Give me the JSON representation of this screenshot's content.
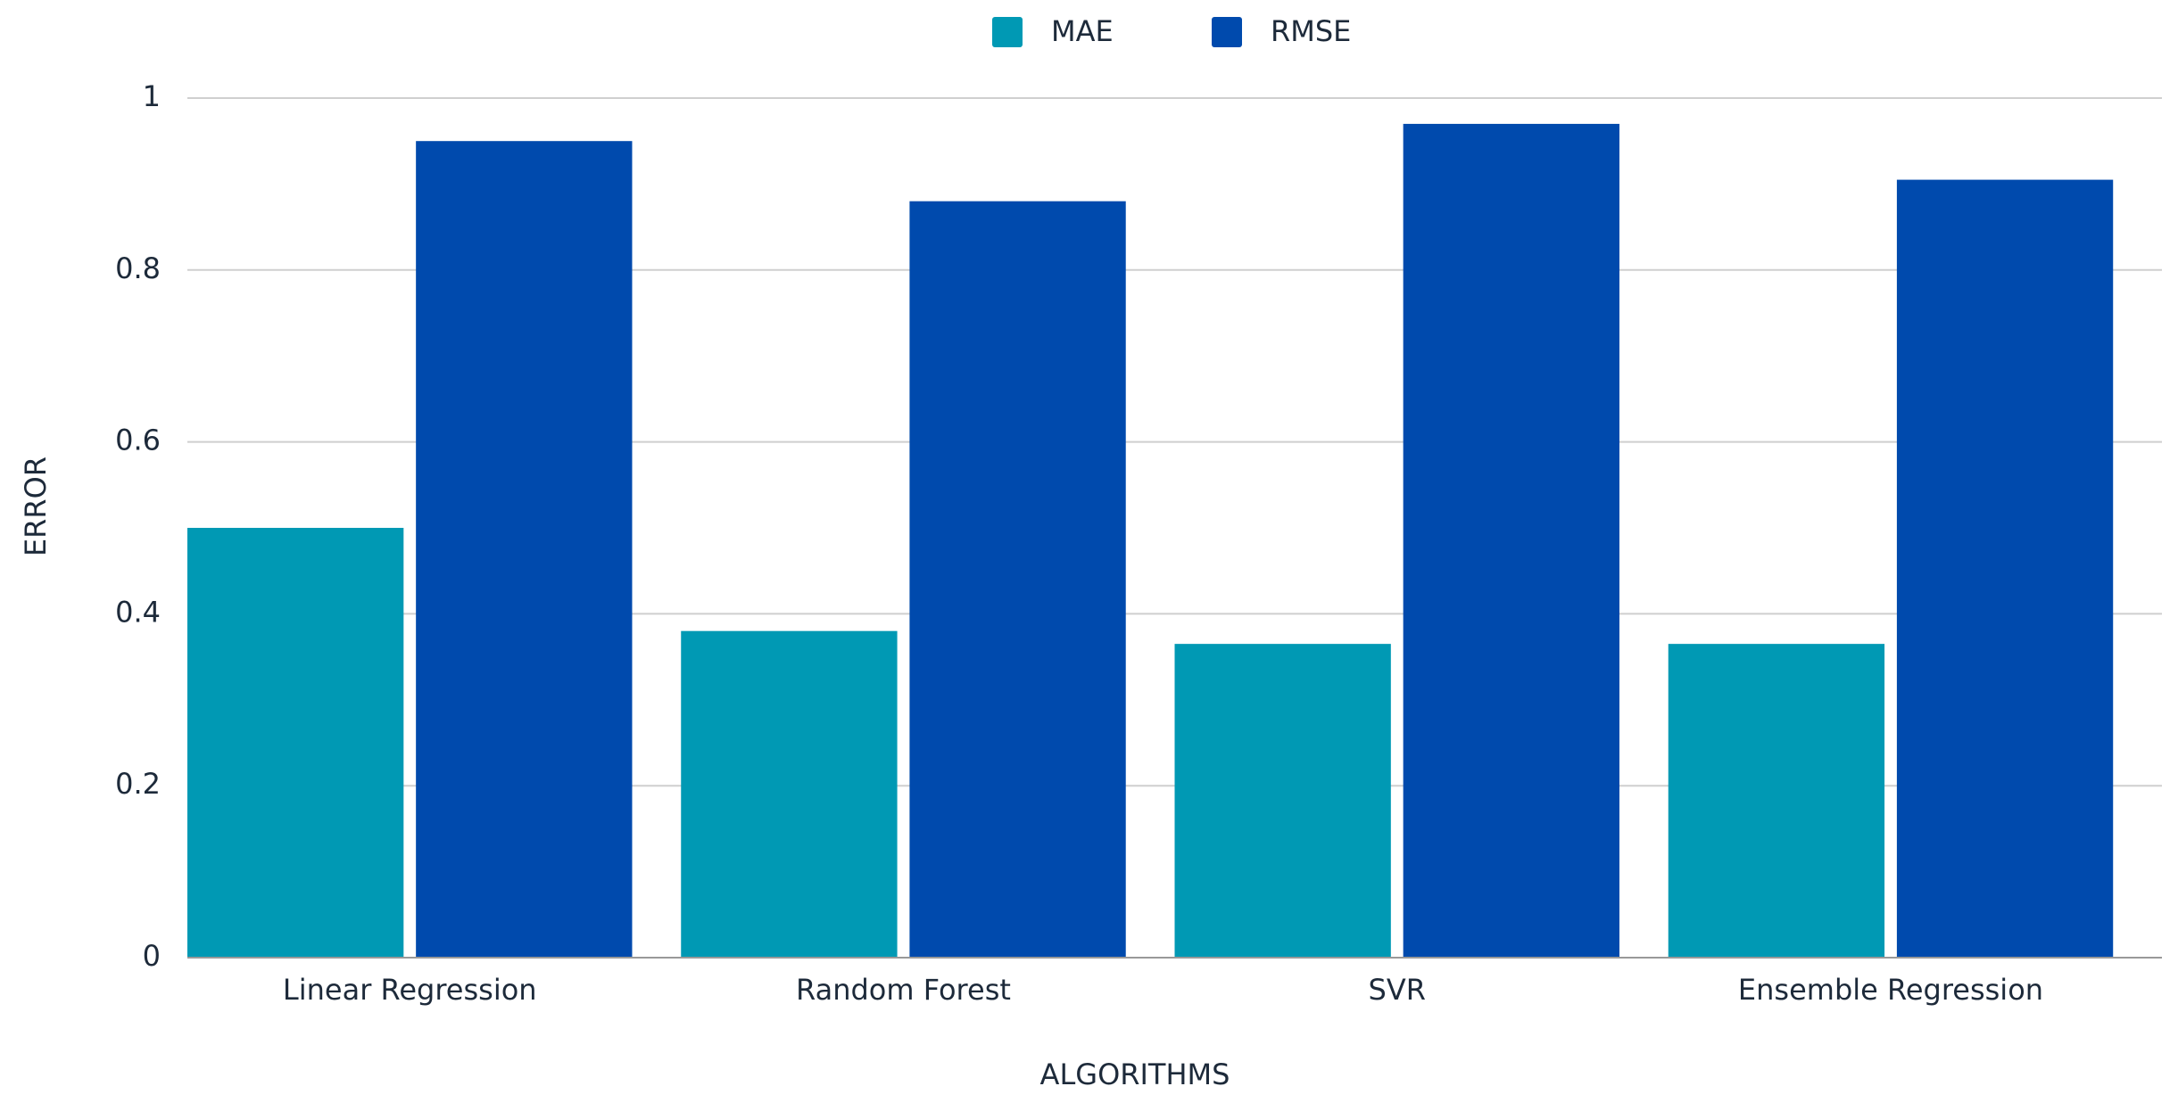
{
  "chart_data": {
    "type": "bar",
    "x_label": "ALGORITHMS",
    "y_label": "ERROR",
    "categories": [
      "Linear Regression",
      "Random Forest",
      "SVR",
      "Ensemble Regression"
    ],
    "series": [
      {
        "name": "MAE",
        "color": "#0099b4",
        "values": [
          0.5,
          0.38,
          0.365,
          0.365
        ]
      },
      {
        "name": "RMSE",
        "color": "#004aad",
        "values": [
          0.95,
          0.88,
          0.97,
          0.905
        ]
      }
    ],
    "ylim": [
      0,
      1
    ],
    "yticks": [
      0,
      0.2,
      0.4,
      0.6,
      0.8,
      1
    ],
    "grid": true,
    "legend": "top"
  }
}
